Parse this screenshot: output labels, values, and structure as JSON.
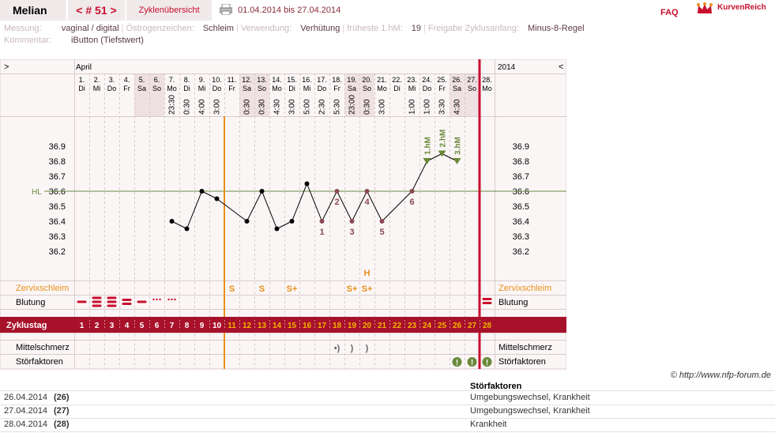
{
  "header": {
    "user": "Melian",
    "cycle_nav": "< # 51 >",
    "overview_tab": "Zyklenübersicht",
    "date_range": "01.04.2014 bis 27.04.2014",
    "faq": "FAQ",
    "logo": "KurvenReich",
    "print_icon": "printer-icon",
    "logo_icon": "crown-icon"
  },
  "info": {
    "measure_label": "Messung:",
    "measure_value": "vaginal / digital",
    "estrogen_label": "Östrogenzeichen:",
    "estrogen_value": "Schleim",
    "use_label": "Verwendung:",
    "use_value": "Verhütung",
    "hm_label": "früheste 1.hM:",
    "hm_value": "19",
    "release_label": "Freigabe Zyklusanfang:",
    "release_value": "Minus-8-Regel",
    "comment_label": "Kommentar:",
    "comment_value": "iButton (Tiefstwert)"
  },
  "chart_data": {
    "type": "line",
    "month_label": "April",
    "year_label": "2014",
    "nav_prev": ">",
    "nav_next": "<",
    "days": [
      {
        "date": "1.",
        "wd": "Di",
        "time": "",
        "we": false
      },
      {
        "date": "2.",
        "wd": "Mi",
        "time": "",
        "we": false
      },
      {
        "date": "3.",
        "wd": "Do",
        "time": "",
        "we": false
      },
      {
        "date": "4.",
        "wd": "Fr",
        "time": "",
        "we": false
      },
      {
        "date": "5.",
        "wd": "Sa",
        "time": "",
        "we": true
      },
      {
        "date": "6.",
        "wd": "So",
        "time": "",
        "we": true
      },
      {
        "date": "7.",
        "wd": "Mo",
        "time": "23:30",
        "we": false
      },
      {
        "date": "8.",
        "wd": "Di",
        "time": "0:30",
        "we": false
      },
      {
        "date": "9.",
        "wd": "Mi",
        "time": "4:00",
        "we": false
      },
      {
        "date": "10.",
        "wd": "Do",
        "time": "3:00",
        "we": false
      },
      {
        "date": "11.",
        "wd": "Fr",
        "time": "",
        "we": false
      },
      {
        "date": "12.",
        "wd": "Sa",
        "time": "0:30",
        "we": true
      },
      {
        "date": "13.",
        "wd": "So",
        "time": "0:30",
        "we": true
      },
      {
        "date": "14.",
        "wd": "Mo",
        "time": "4:30",
        "we": false
      },
      {
        "date": "15.",
        "wd": "Di",
        "time": "3:00",
        "we": false
      },
      {
        "date": "16.",
        "wd": "Mi",
        "time": "5:00",
        "we": false
      },
      {
        "date": "17.",
        "wd": "Do",
        "time": "2:30",
        "we": false
      },
      {
        "date": "18.",
        "wd": "Fr",
        "time": "5:30",
        "we": false
      },
      {
        "date": "19.",
        "wd": "Sa",
        "time": "23:00",
        "we": true
      },
      {
        "date": "20.",
        "wd": "So",
        "time": "0:30",
        "we": true
      },
      {
        "date": "21.",
        "wd": "Mo",
        "time": "3:00",
        "we": false
      },
      {
        "date": "22.",
        "wd": "Di",
        "time": "",
        "we": false
      },
      {
        "date": "23.",
        "wd": "Mi",
        "time": "1:00",
        "we": false
      },
      {
        "date": "24.",
        "wd": "Do",
        "time": "1:00",
        "we": false
      },
      {
        "date": "25.",
        "wd": "Fr",
        "time": "3:30",
        "we": false
      },
      {
        "date": "26.",
        "wd": "Sa",
        "time": "4:30",
        "we": true
      },
      {
        "date": "27.",
        "wd": "So",
        "time": "",
        "we": true
      },
      {
        "date": "28.",
        "wd": "Mo",
        "time": "",
        "we": false
      }
    ],
    "yticks": [
      "36.9",
      "36.8",
      "36.7",
      "36.6",
      "36.5",
      "36.4",
      "36.3",
      "36.2"
    ],
    "ylim": [
      36.2,
      36.9
    ],
    "hl_label": "HL",
    "hl_value": 36.6,
    "temps": [
      null,
      null,
      null,
      null,
      null,
      null,
      36.4,
      36.35,
      36.6,
      36.55,
      null,
      36.4,
      36.6,
      36.35,
      36.4,
      36.65,
      36.4,
      36.6,
      36.4,
      36.6,
      36.4,
      null,
      36.6,
      36.8,
      36.85,
      36.8,
      null,
      null
    ],
    "low_labels": [
      {
        "day": 17,
        "text": "1"
      },
      {
        "day": 18,
        "text": "2"
      },
      {
        "day": 19,
        "text": "3"
      },
      {
        "day": 20,
        "text": "4"
      },
      {
        "day": 21,
        "text": "5"
      },
      {
        "day": 23,
        "text": "6"
      }
    ],
    "high_labels": [
      {
        "day": 24,
        "text": "1.hM"
      },
      {
        "day": 25,
        "text": "2.hM"
      },
      {
        "day": 26,
        "text": "3.hM"
      }
    ],
    "mucus_label": "Zervixschleim",
    "mucus": [
      {
        "day": 11,
        "text": "S"
      },
      {
        "day": 13,
        "text": "S"
      },
      {
        "day": 15,
        "text": "S+"
      },
      {
        "day": 19,
        "text": "S+"
      },
      {
        "day": 20,
        "text": "S+"
      }
    ],
    "mucus_extra": {
      "day": 20,
      "text": "H"
    },
    "bleeding_label": "Blutung",
    "bleeding": [
      {
        "day": 1,
        "level": 1
      },
      {
        "day": 2,
        "level": 3
      },
      {
        "day": 3,
        "level": 3
      },
      {
        "day": 4,
        "level": 2
      },
      {
        "day": 5,
        "level": 1
      },
      {
        "day": 6,
        "level": 0
      },
      {
        "day": 7,
        "level": 0
      }
    ],
    "cycle_label": "Zyklustag",
    "cycle_days": [
      "1",
      "2",
      "3",
      "4",
      "5",
      "6",
      "7",
      "8",
      "9",
      "10",
      "11",
      "12",
      "13",
      "14",
      "15",
      "16",
      "17",
      "18",
      "19",
      "20",
      "21",
      "22",
      "23",
      "24",
      "25",
      "26",
      "27",
      "28"
    ],
    "mittelschmerz_label": "Mittelschmerz",
    "mittelschmerz": [
      {
        "day": 18,
        "text": "•)"
      },
      {
        "day": 19,
        "text": ")"
      },
      {
        "day": 20,
        "text": ")"
      }
    ],
    "stoer_label": "Störfaktoren",
    "stoer_days": [
      26,
      27,
      28
    ],
    "stoer_icon": "alert-icon",
    "colors": {
      "accent": "#c8102e",
      "orange": "#e8901a",
      "green": "#6a8a3a",
      "weekend": "#efe0e3",
      "point": "#000000",
      "low_point": "#8a4a55"
    }
  },
  "footer": {
    "copyright": "© http://www.nfp-forum.de",
    "table_header": "Störfaktoren",
    "rows": [
      {
        "date": "26.04.2014",
        "cycle": "(26)",
        "text": "Umgebungswechsel, Krankheit"
      },
      {
        "date": "27.04.2014",
        "cycle": "(27)",
        "text": "Umgebungswechsel, Krankheit"
      },
      {
        "date": "28.04.2014",
        "cycle": "(28)",
        "text": "Krankheit"
      }
    ]
  }
}
